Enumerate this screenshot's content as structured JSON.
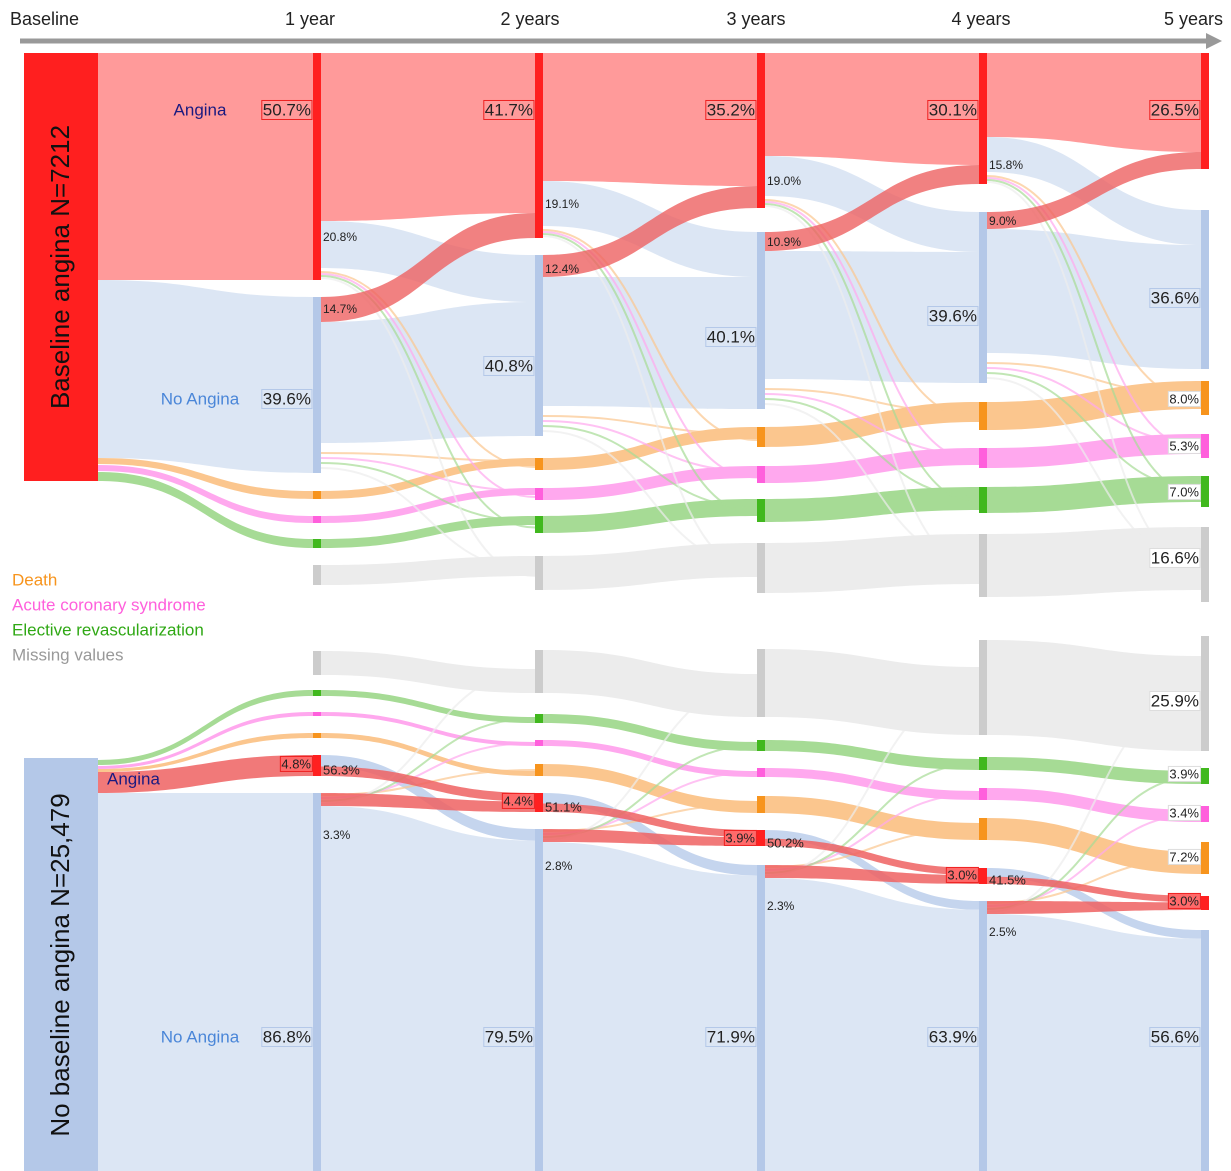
{
  "timeline": [
    "Baseline",
    "1 year",
    "2 years",
    "3 years",
    "4 years",
    "5 years"
  ],
  "legend": [
    "Death",
    "Acute coronary syndrome",
    "Elective revascularization",
    "Missing values"
  ],
  "top": {
    "title": "Baseline angina N=7212",
    "angina_label": "Angina",
    "no_angina_label": "No Angina",
    "angina": [
      "50.7%",
      "41.7%",
      "35.2%",
      "30.1%",
      "26.5%"
    ],
    "no_angina": [
      "39.6%",
      "40.8%",
      "40.1%",
      "39.6%",
      "36.6%"
    ],
    "to_angina": [
      "14.7%",
      "12.4%",
      "10.9%",
      "9.0%"
    ],
    "to_no_angina": [
      "20.8%",
      "19.1%",
      "19.0%",
      "15.8%"
    ],
    "outcomes_5y": [
      "8.0%",
      "5.3%",
      "7.0%",
      "16.6%"
    ]
  },
  "bottom": {
    "title": "No baseline angina N=25,479",
    "angina_label": "Angina",
    "no_angina_label": "No Angina",
    "angina": [
      "4.8%",
      "4.4%",
      "3.9%",
      "3.0%",
      "3.0%"
    ],
    "no_angina": [
      "86.8%",
      "79.5%",
      "71.9%",
      "63.9%",
      "56.6%"
    ],
    "to_angina": [
      "3.3%",
      "2.8%",
      "2.3%",
      "2.5%"
    ],
    "to_no_angina": [
      "56.3%",
      "51.1%",
      "50.2%",
      "41.5%"
    ],
    "outcomes_5y": [
      "25.9%",
      "3.9%",
      "3.4%",
      "7.2%"
    ]
  }
}
